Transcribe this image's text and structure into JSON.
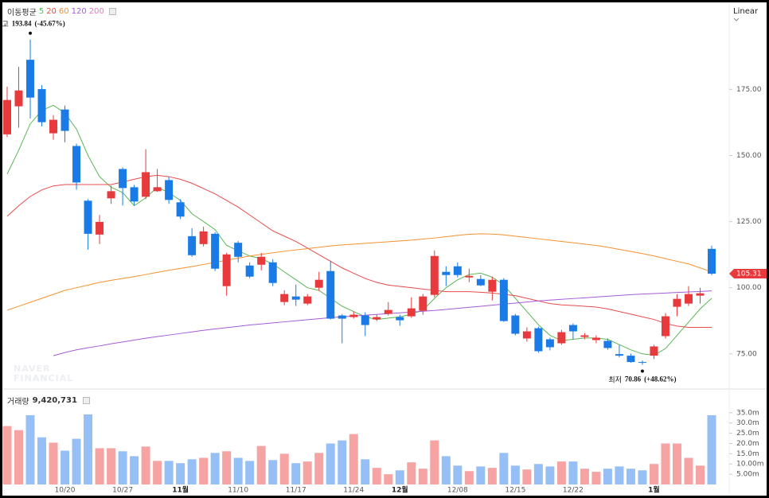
{
  "chart_data": [
    {
      "type": "candlestick",
      "legend_title": "이동평균",
      "scale": "Linear",
      "watermark": [
        "NAVER",
        "FINANCIAL"
      ],
      "up_color": "#e8393d",
      "down_color": "#1b7be6",
      "open": [
        158,
        168.6,
        186.2,
        175.1,
        158.4,
        167.4,
        153.6,
        132.9,
        120.1,
        133.8,
        144.9,
        138,
        134.4,
        136.5,
        140.7,
        132.3,
        119.5,
        116.5,
        120.4,
        100.6,
        117,
        108.4,
        108.7,
        109.6,
        94.6,
        96.7,
        94,
        100,
        106.3,
        89.5,
        88.9,
        89.5,
        88,
        90.1,
        88.9,
        89.2,
        91.3,
        97.3,
        106,
        108.1,
        103.9,
        103.3,
        98.5,
        103,
        89.5,
        80.8,
        84.7,
        80.5,
        79,
        85.9,
        81.4,
        80.2,
        79.9,
        74.9,
        74.3,
        71.9,
        74.3,
        81.7,
        92.8,
        94,
        97,
        114.7
      ],
      "high": [
        176,
        183.5,
        193.84,
        176.6,
        165.3,
        168.9,
        154.5,
        133.5,
        127.5,
        138.6,
        145.5,
        138.9,
        152.4,
        144.9,
        141.9,
        133.5,
        122.5,
        123.1,
        121,
        113.2,
        117.7,
        109.6,
        113.2,
        110.8,
        99,
        101.2,
        97.6,
        106,
        110.2,
        90.1,
        91,
        90.7,
        89.8,
        94.6,
        89.8,
        96.4,
        97.6,
        114.1,
        108.1,
        109.6,
        107.2,
        104.8,
        104.2,
        103.6,
        90.1,
        85,
        85.3,
        81.1,
        84.1,
        86.5,
        82.9,
        82,
        80.8,
        78.4,
        75.1,
        72.5,
        78.4,
        90.4,
        97.6,
        100.6,
        100,
        115.9
      ],
      "low": [
        157,
        160.5,
        164,
        161,
        156,
        155,
        137.1,
        114.4,
        116.5,
        131.7,
        131.1,
        131.1,
        133.5,
        136.3,
        131.7,
        126,
        111.7,
        115.6,
        106.3,
        97,
        109.6,
        103.6,
        106.6,
        100.6,
        93.4,
        93.1,
        93.4,
        98.8,
        88,
        79,
        88.3,
        81.7,
        87.4,
        89.5,
        85.6,
        88.6,
        89.8,
        96.4,
        100.6,
        103.9,
        102.1,
        100.6,
        95.2,
        87.1,
        82,
        79.6,
        75.4,
        76.3,
        78.4,
        80.5,
        80.5,
        79,
        76.6,
        73.7,
        71.6,
        70.86,
        73,
        80.8,
        89.2,
        93.1,
        94,
        104.8
      ],
      "close": [
        171,
        174.6,
        171.9,
        162.6,
        163.5,
        159.3,
        139.8,
        120.4,
        124.9,
        136.5,
        137.7,
        132.6,
        143.7,
        138,
        133.2,
        126.9,
        112.3,
        121.3,
        107.2,
        112.6,
        111.7,
        104.2,
        111.7,
        101.8,
        97.6,
        95.5,
        96.7,
        103,
        88.3,
        88.3,
        89.8,
        85.9,
        88.9,
        91.6,
        87.7,
        92.2,
        96.7,
        112,
        104.8,
        104.8,
        104.5,
        100.9,
        103,
        87.4,
        82.6,
        83.5,
        76,
        77.5,
        83.2,
        83.5,
        82,
        81.1,
        77.2,
        74.3,
        71.9,
        71.6,
        77.8,
        89.2,
        95.8,
        97.6,
        97.9,
        105.31
      ],
      "series": [
        {
          "name": "5",
          "color": "#5bb655",
          "values": [
            143,
            152,
            162,
            167,
            169,
            166,
            160,
            150,
            142,
            138,
            136,
            131,
            134,
            138,
            136,
            133,
            128,
            125,
            122,
            116,
            114,
            112,
            111,
            109,
            106,
            103,
            100,
            99,
            96,
            93,
            91,
            89,
            88,
            88.5,
            89,
            90,
            91.5,
            96,
            100,
            103,
            105,
            105.5,
            104,
            101,
            96,
            91,
            86,
            82,
            80,
            80.5,
            81,
            81,
            80.5,
            78.5,
            76.5,
            75,
            74.5,
            77,
            82,
            87,
            92,
            96
          ]
        },
        {
          "name": "20",
          "color": "#e84b4b",
          "values": [
            127,
            131,
            134.5,
            137,
            138.5,
            139,
            139,
            139,
            139,
            139,
            140,
            141,
            142,
            142.5,
            142,
            141,
            139.5,
            137.5,
            135.5,
            133,
            130.5,
            127.5,
            124.5,
            121.5,
            119.5,
            117.5,
            115,
            112.5,
            110,
            107.5,
            105.5,
            103.5,
            102,
            101,
            100.5,
            100,
            99.5,
            99,
            98.5,
            98.5,
            98.5,
            98.3,
            98,
            97.5,
            97,
            96,
            95,
            94,
            93.5,
            93.3,
            93,
            92.7,
            92,
            91,
            90,
            89,
            88,
            86.5,
            85.5,
            85,
            85,
            85
          ]
        },
        {
          "name": "60",
          "color": "#f5912e",
          "values": [
            91.5,
            93,
            94.5,
            96,
            97.5,
            99,
            100,
            101,
            102,
            102.8,
            103.5,
            104.2,
            105,
            105.8,
            106.6,
            107.3,
            108,
            108.8,
            109.6,
            110.4,
            111.2,
            112,
            112.6,
            113.2,
            113.8,
            114.3,
            114.8,
            115.3,
            115.8,
            116.2,
            116.5,
            116.8,
            117.1,
            117.4,
            117.7,
            118,
            118.4,
            118.8,
            119.3,
            119.8,
            120.2,
            120.4,
            120.3,
            120,
            119.5,
            119,
            118.5,
            118,
            117.5,
            117,
            116.5,
            116,
            115.3,
            114.5,
            113.7,
            112.9,
            112,
            111,
            110,
            109,
            107.5,
            106
          ]
        },
        {
          "name": "120",
          "color": "#a65bd6",
          "values": [
            null,
            null,
            null,
            null,
            74.3,
            75.5,
            76.5,
            77.3,
            78,
            78.8,
            79.5,
            80.2,
            80.9,
            81.5,
            82.1,
            82.7,
            83.3,
            83.9,
            84.4,
            84.9,
            85.4,
            85.9,
            86.3,
            86.7,
            87.1,
            87.5,
            87.9,
            88.3,
            88.7,
            89,
            89.3,
            89.6,
            89.9,
            90.2,
            90.5,
            90.8,
            91.1,
            91.4,
            91.8,
            92.2,
            92.6,
            93,
            93.4,
            93.8,
            94.2,
            94.6,
            95,
            95.3,
            95.6,
            95.9,
            96.2,
            96.5,
            96.8,
            97.1,
            97.4,
            97.6,
            97.8,
            98,
            98.2,
            98.4,
            98.6,
            98.8
          ]
        },
        {
          "name": "200",
          "color": "#e879c9",
          "values": [
            null,
            null,
            null,
            null,
            null,
            null,
            null,
            null,
            null,
            null,
            null,
            null,
            null,
            null,
            null,
            null,
            null,
            null,
            null,
            null,
            null,
            null,
            null,
            null,
            null,
            null,
            null,
            null,
            null,
            null,
            null,
            null,
            null,
            null,
            null,
            null,
            null,
            null,
            null,
            null,
            null,
            null,
            null,
            null,
            null,
            null,
            null,
            null,
            null,
            null,
            null,
            null,
            null,
            null,
            null,
            null,
            null,
            null,
            null,
            null,
            null,
            null
          ]
        }
      ],
      "ylim": [
        62,
        207
      ],
      "yticks": [
        {
          "value": 75,
          "label": "75.00"
        },
        {
          "value": 100,
          "label": "100.00"
        },
        {
          "value": 125,
          "label": "125.00"
        },
        {
          "value": 150,
          "label": "150.00"
        },
        {
          "value": 175,
          "label": "175.00"
        }
      ],
      "annotations": [
        {
          "label": "최고",
          "value": 193.84,
          "change": "(-45.67%)"
        },
        {
          "label": "최저",
          "value": 70.86,
          "change": "(+48.62%)"
        }
      ]
    },
    {
      "type": "bar",
      "title": "거래량",
      "total": {
        "value": 9420731,
        "value_label": "9,420,731"
      },
      "up_color": "#f5a3a3",
      "down_color": "#96bff5",
      "categories": [
        null,
        null,
        null,
        null,
        null,
        "10/20",
        null,
        null,
        null,
        null,
        "10/27",
        null,
        null,
        null,
        null,
        "11월",
        null,
        null,
        null,
        null,
        "11/10",
        null,
        null,
        null,
        null,
        "11/17",
        null,
        null,
        null,
        null,
        "11/24",
        null,
        null,
        null,
        "12월",
        null,
        null,
        null,
        null,
        "12/08",
        null,
        null,
        null,
        null,
        "12/15",
        null,
        null,
        null,
        null,
        "12/22",
        null,
        null,
        null,
        null,
        null,
        null,
        "1월",
        null,
        null,
        null,
        null,
        null
      ],
      "values": [
        28.5,
        26.5,
        33.8,
        23,
        20.4,
        16.5,
        22.3,
        34.2,
        17.7,
        17.7,
        16.2,
        13.8,
        18.5,
        11.5,
        11.5,
        10.4,
        12.3,
        13,
        15.4,
        16.2,
        13,
        11.5,
        18.8,
        11.9,
        15,
        10.4,
        11.2,
        15.4,
        20,
        21.5,
        24.6,
        12.3,
        8.1,
        5,
        6.9,
        10.8,
        7.7,
        21.5,
        13.8,
        9.2,
        6.5,
        8.8,
        8.1,
        15.4,
        9.2,
        7.3,
        10,
        8.8,
        11.2,
        11.2,
        7.7,
        6.2,
        7.7,
        8.8,
        7.7,
        6.9,
        10,
        20,
        20,
        13,
        9.2,
        33.8
      ],
      "ylim": [
        0,
        45.8
      ],
      "yticks": [
        {
          "value": 5,
          "label": "5.00m"
        },
        {
          "value": 10,
          "label": "10.00m"
        },
        {
          "value": 15,
          "label": "15.0m"
        },
        {
          "value": 20,
          "label": "20.0m"
        },
        {
          "value": 25,
          "label": "25.0m"
        },
        {
          "value": 30,
          "label": "30.0m"
        },
        {
          "value": 35,
          "label": "35.0m"
        }
      ]
    }
  ]
}
